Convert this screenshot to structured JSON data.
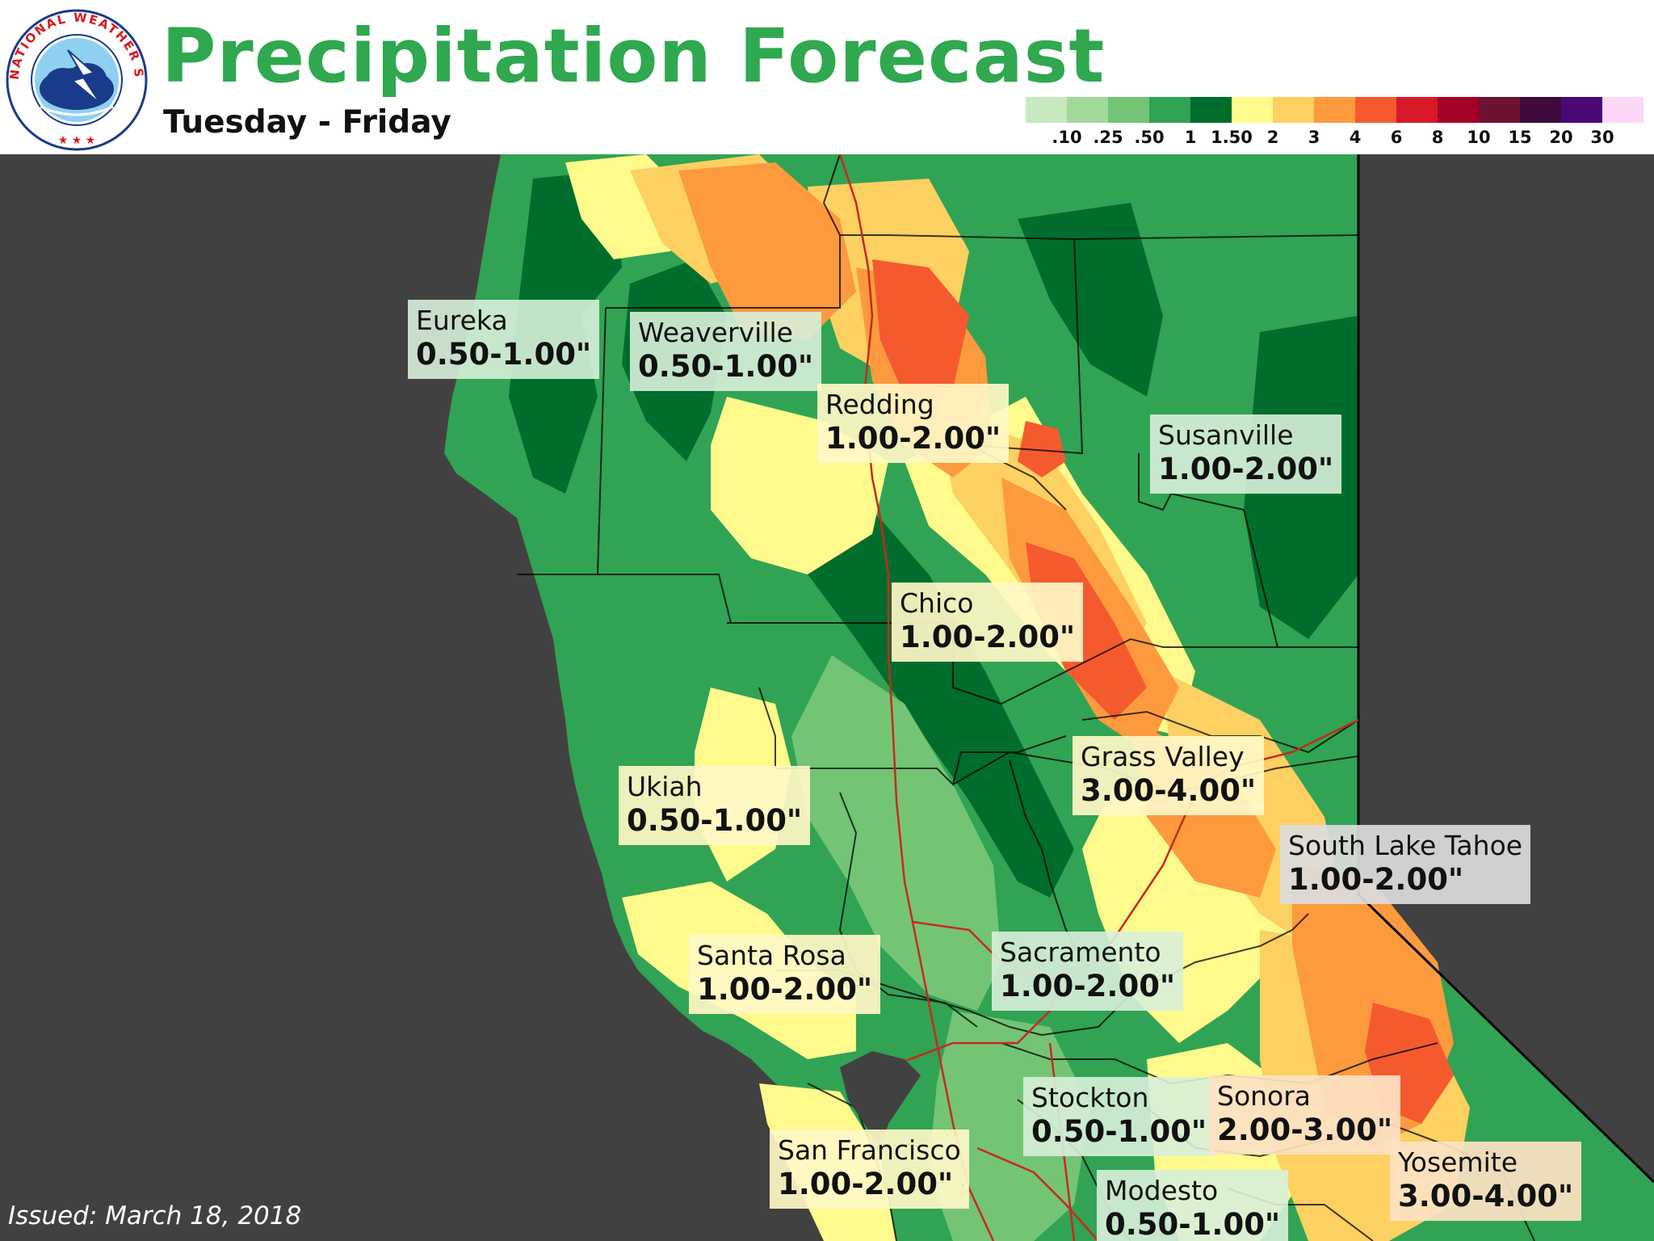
{
  "header": {
    "title": "Precipitation Forecast",
    "subtitle": "Tuesday - Friday",
    "logo_text": "NATIONAL WEATHER SERVICE"
  },
  "legend": {
    "labels": [
      ".10",
      ".25",
      ".50",
      "1",
      "1.50",
      "2",
      "3",
      "4",
      "6",
      "8",
      "10",
      "15",
      "20",
      "30"
    ],
    "colors": [
      "#c7e9c0",
      "#a1d99b",
      "#74c476",
      "#31a354",
      "#006d2c",
      "#fffa8c",
      "#fdd062",
      "#fd9a3e",
      "#f55a2f",
      "#d9182a",
      "#a50026",
      "#6e1234",
      "#3f0a3a",
      "#4a0874",
      "#fcd7f7"
    ]
  },
  "map": {
    "ocean_color": "#414141",
    "label_bg_green": "#d8efd9",
    "label_bg_yellow": "#fff7c5",
    "label_bg_orange": "#fde2c4",
    "label_bg_gray": "#dcdcdc"
  },
  "cities": [
    {
      "name": "Eureka",
      "amount": "0.50-1.00\""
    },
    {
      "name": "Weaverville",
      "amount": "0.50-1.00\""
    },
    {
      "name": "Redding",
      "amount": "1.00-2.00\""
    },
    {
      "name": "Susanville",
      "amount": "1.00-2.00\""
    },
    {
      "name": "Chico",
      "amount": "1.00-2.00\""
    },
    {
      "name": "Grass Valley",
      "amount": "3.00-4.00\""
    },
    {
      "name": "Ukiah",
      "amount": "0.50-1.00\""
    },
    {
      "name": "South Lake Tahoe",
      "amount": "1.00-2.00\""
    },
    {
      "name": "Santa Rosa",
      "amount": "1.00-2.00\""
    },
    {
      "name": "Sacramento",
      "amount": "1.00-2.00\""
    },
    {
      "name": "Stockton",
      "amount": "0.50-1.00\""
    },
    {
      "name": "Sonora",
      "amount": "2.00-3.00\""
    },
    {
      "name": "San Francisco",
      "amount": "1.00-2.00\""
    },
    {
      "name": "Yosemite",
      "amount": "3.00-4.00\""
    },
    {
      "name": "Modesto",
      "amount": "0.50-1.00\""
    }
  ],
  "footer": {
    "issued": "Issued: March 18, 2018"
  }
}
